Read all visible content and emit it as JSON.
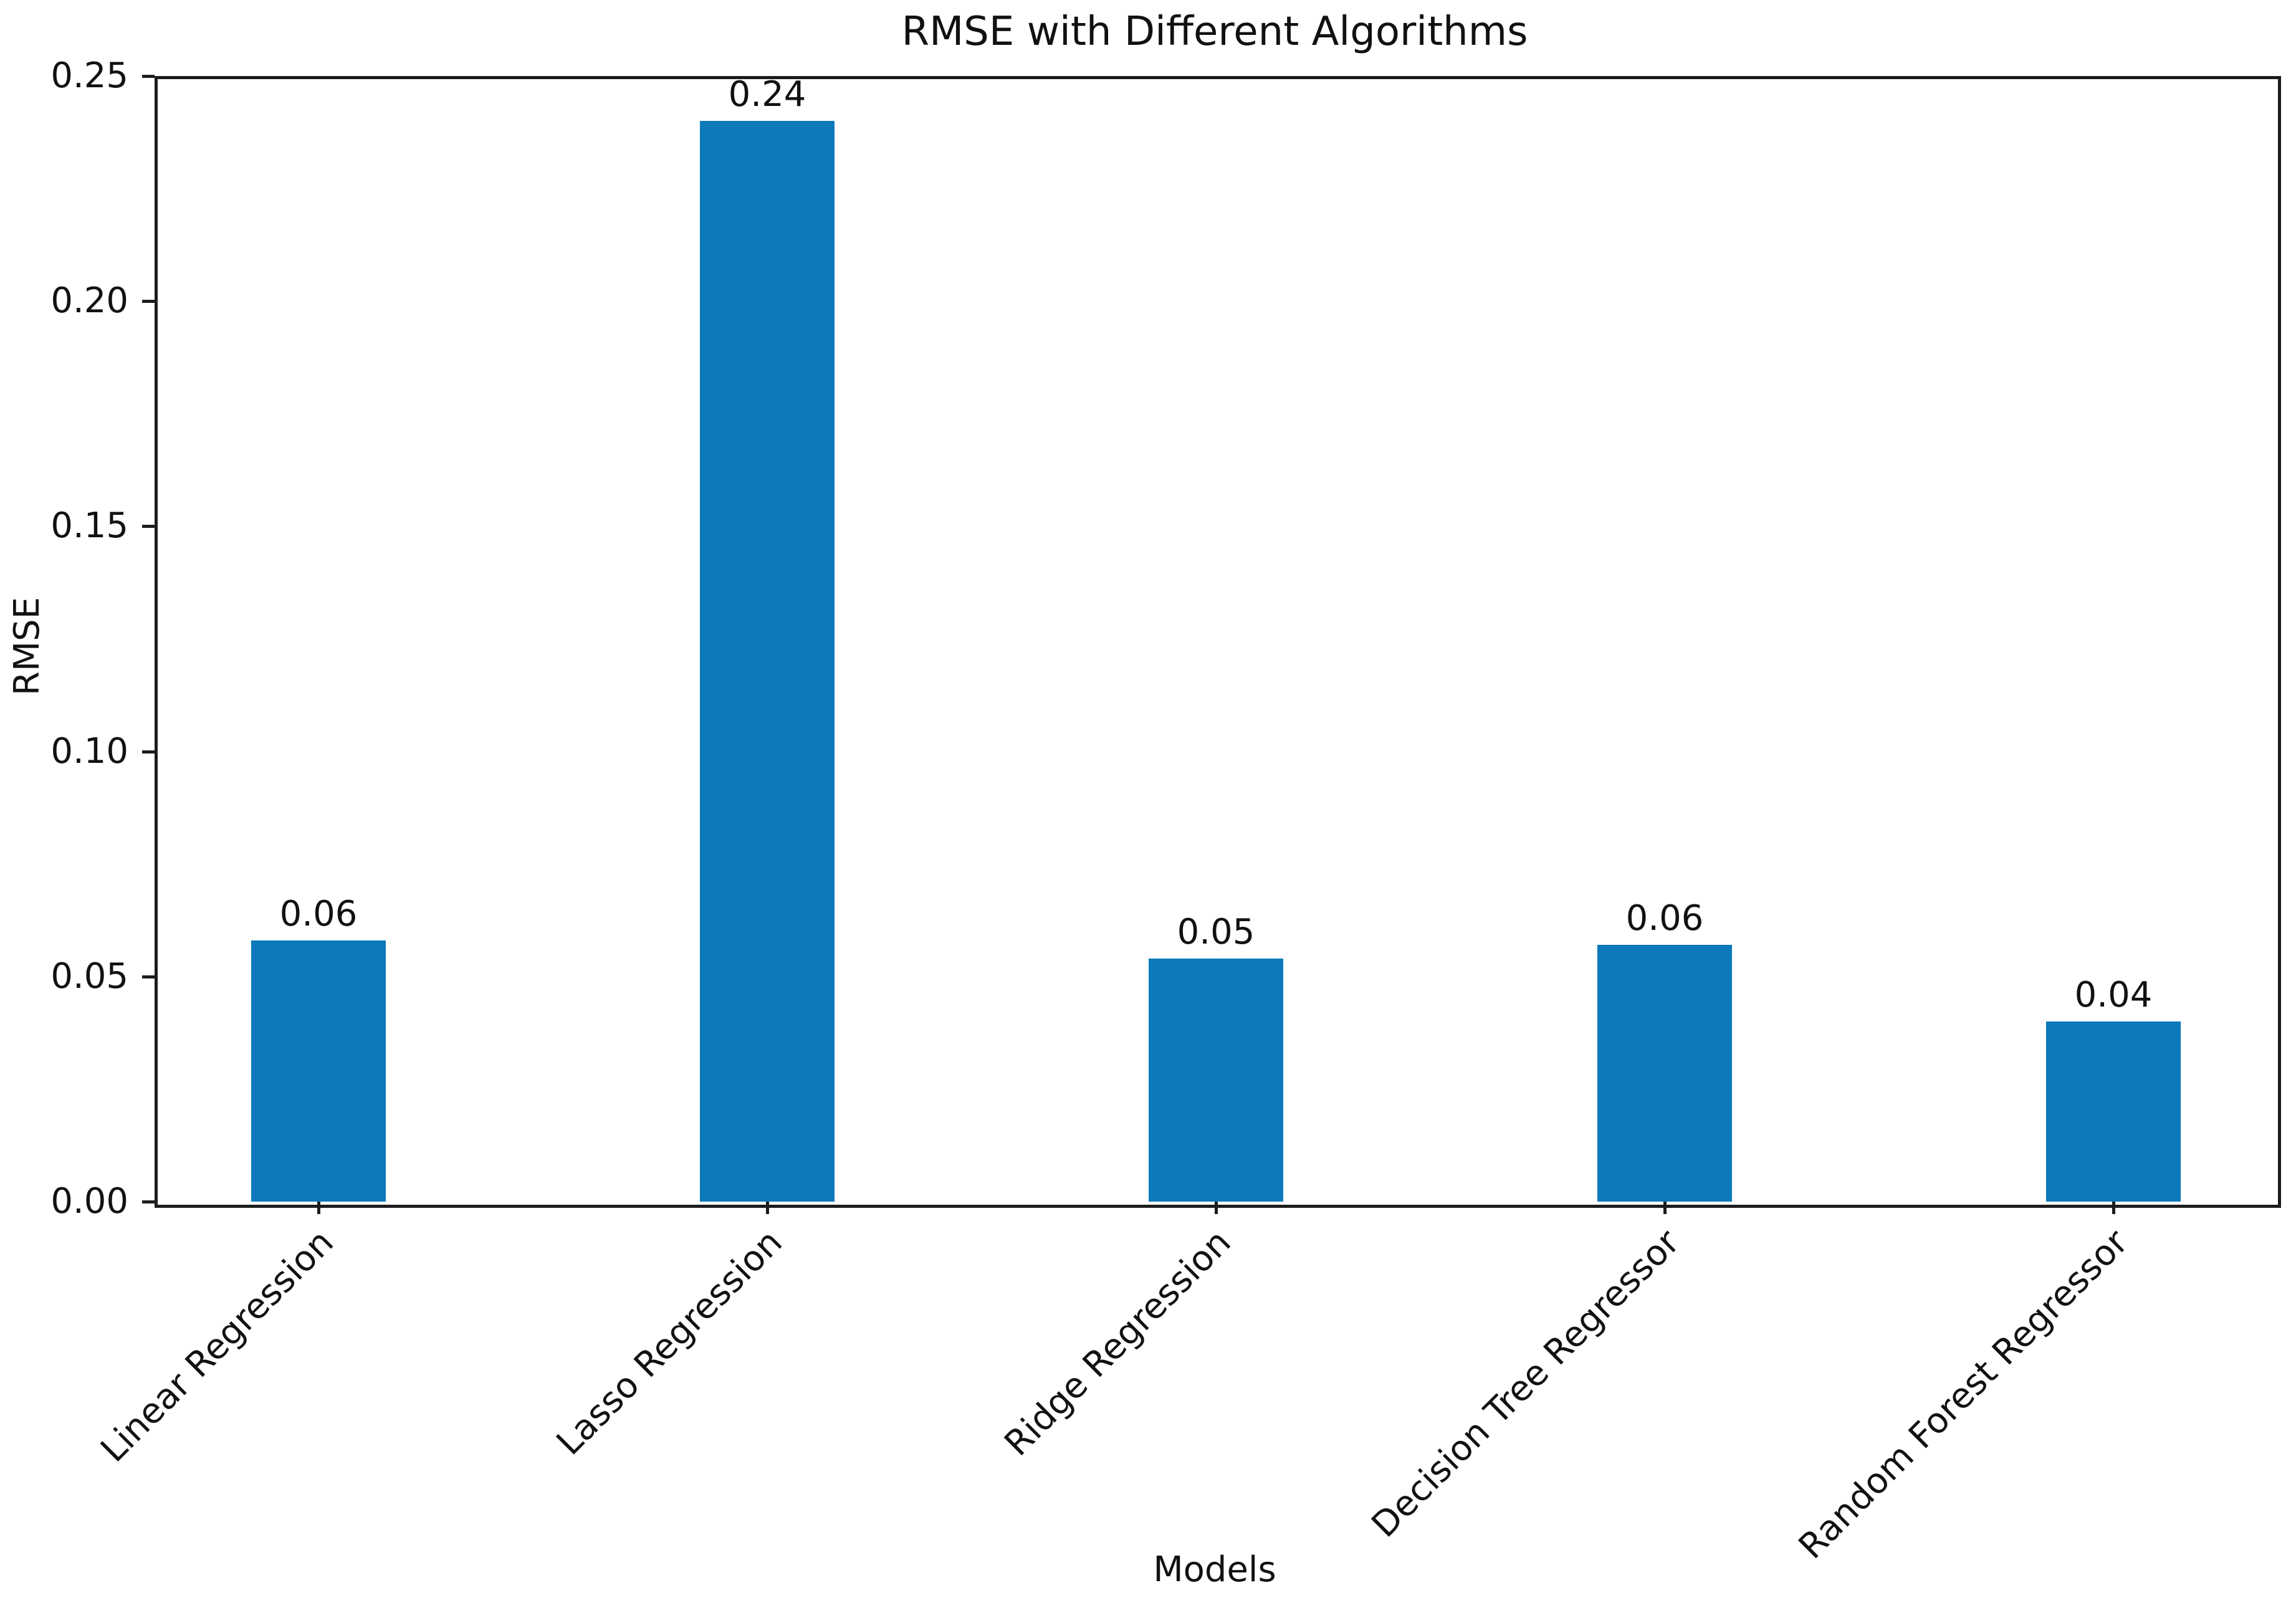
{
  "chart_data": {
    "type": "bar",
    "title": "RMSE with Different Algorithms",
    "xlabel": "Models",
    "ylabel": "RMSE",
    "categories": [
      "Linear Regression",
      "Lasso Regression",
      "Ridge Regression",
      "Decision Tree Regressor",
      "Random Forest Regressor"
    ],
    "values": [
      0.06,
      0.24,
      0.05,
      0.06,
      0.04
    ],
    "bar_labels": [
      "0.06",
      "0.24",
      "0.05",
      "0.06",
      "0.04"
    ],
    "values_precise": [
      0.058,
      0.24,
      0.054,
      0.057,
      0.04
    ],
    "ytick_labels": [
      "0.00",
      "0.05",
      "0.10",
      "0.15",
      "0.20",
      "0.25"
    ],
    "yticks": [
      0.0,
      0.05,
      0.1,
      0.15,
      0.2,
      0.25
    ],
    "ylim": [
      0.0,
      0.25
    ],
    "bar_color": "#0b79ba",
    "grid": false,
    "tick_rotation_deg": 45,
    "legend_position": "none"
  }
}
